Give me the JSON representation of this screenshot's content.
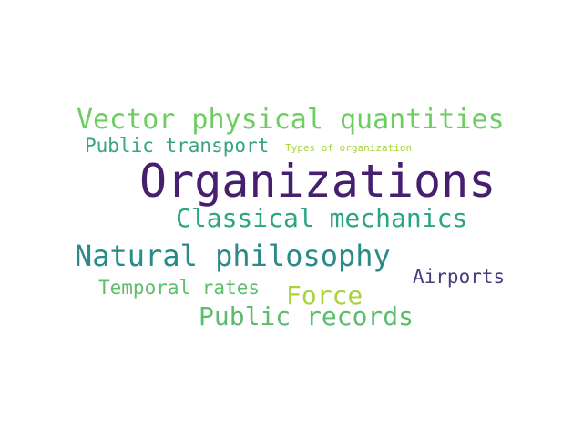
{
  "wordcloud": {
    "words": [
      {
        "text": "Organizations",
        "color": "#46206e"
      },
      {
        "text": "Vector physical quantities",
        "color": "#6ccd60"
      },
      {
        "text": "Public transport",
        "color": "#36a57c"
      },
      {
        "text": "Types of organization",
        "color": "#a6d43a"
      },
      {
        "text": "Classical mechanics",
        "color": "#2aa685"
      },
      {
        "text": "Natural philosophy",
        "color": "#2a8a8a"
      },
      {
        "text": "Airports",
        "color": "#473c7e"
      },
      {
        "text": "Temporal rates",
        "color": "#5dbf6a"
      },
      {
        "text": "Force",
        "color": "#a9d33b"
      },
      {
        "text": "Public records",
        "color": "#5abd6c"
      }
    ]
  }
}
